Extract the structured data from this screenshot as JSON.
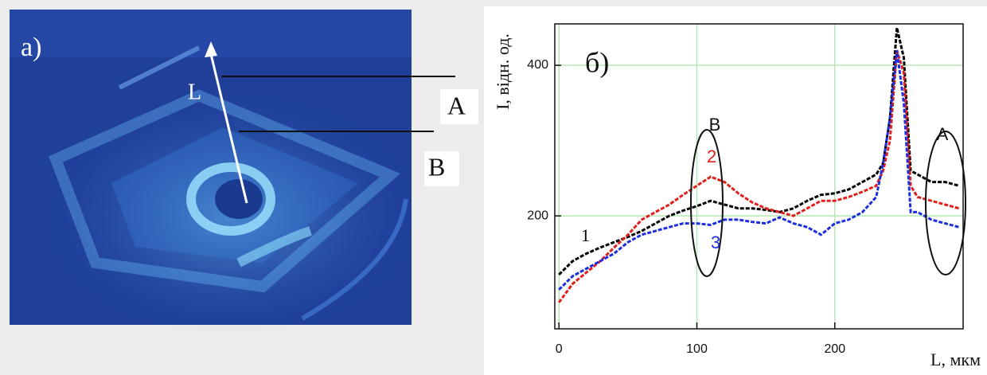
{
  "photo": {
    "label": "а)",
    "arrow_label": "L",
    "marker_a": "A",
    "marker_b": "B"
  },
  "chart_data": {
    "type": "line",
    "panel_label": "б)",
    "x_label": "L, мкм",
    "y_label": "I, відн. од.",
    "annotations": {
      "region_b": "B",
      "region_a": "A",
      "curve_1": "1",
      "curve_2": "2",
      "curve_3": "3"
    },
    "x": [
      0,
      10,
      20,
      30,
      40,
      50,
      60,
      70,
      80,
      90,
      100,
      110,
      120,
      130,
      140,
      150,
      160,
      170,
      180,
      190,
      200,
      210,
      220,
      230,
      235,
      240,
      245,
      250,
      255,
      260,
      270,
      280,
      290
    ],
    "series": [
      {
        "name": "1",
        "color": "#000000",
        "values": [
          122,
          140,
          150,
          158,
          165,
          172,
          180,
          190,
          200,
          207,
          213,
          220,
          215,
          210,
          210,
          208,
          205,
          210,
          220,
          228,
          230,
          235,
          245,
          255,
          270,
          330,
          450,
          410,
          260,
          255,
          245,
          245,
          240
        ]
      },
      {
        "name": "2",
        "color": "#e0201c",
        "values": [
          85,
          110,
          125,
          140,
          158,
          175,
          195,
          205,
          215,
          228,
          240,
          252,
          245,
          230,
          218,
          210,
          205,
          200,
          210,
          220,
          220,
          225,
          232,
          240,
          260,
          300,
          420,
          390,
          240,
          225,
          220,
          215,
          210
        ]
      },
      {
        "name": "3",
        "color": "#1c2ee0",
        "values": [
          102,
          120,
          130,
          140,
          150,
          165,
          175,
          180,
          185,
          190,
          190,
          188,
          195,
          195,
          192,
          190,
          198,
          190,
          185,
          175,
          190,
          195,
          205,
          225,
          270,
          330,
          420,
          350,
          205,
          205,
          195,
          190,
          185
        ]
      }
    ],
    "xlim": [
      -3,
      293
    ],
    "ylim": [
      50,
      455
    ],
    "xticks": [
      0,
      100,
      200
    ],
    "yticks": [
      200,
      400
    ],
    "grid": true
  }
}
